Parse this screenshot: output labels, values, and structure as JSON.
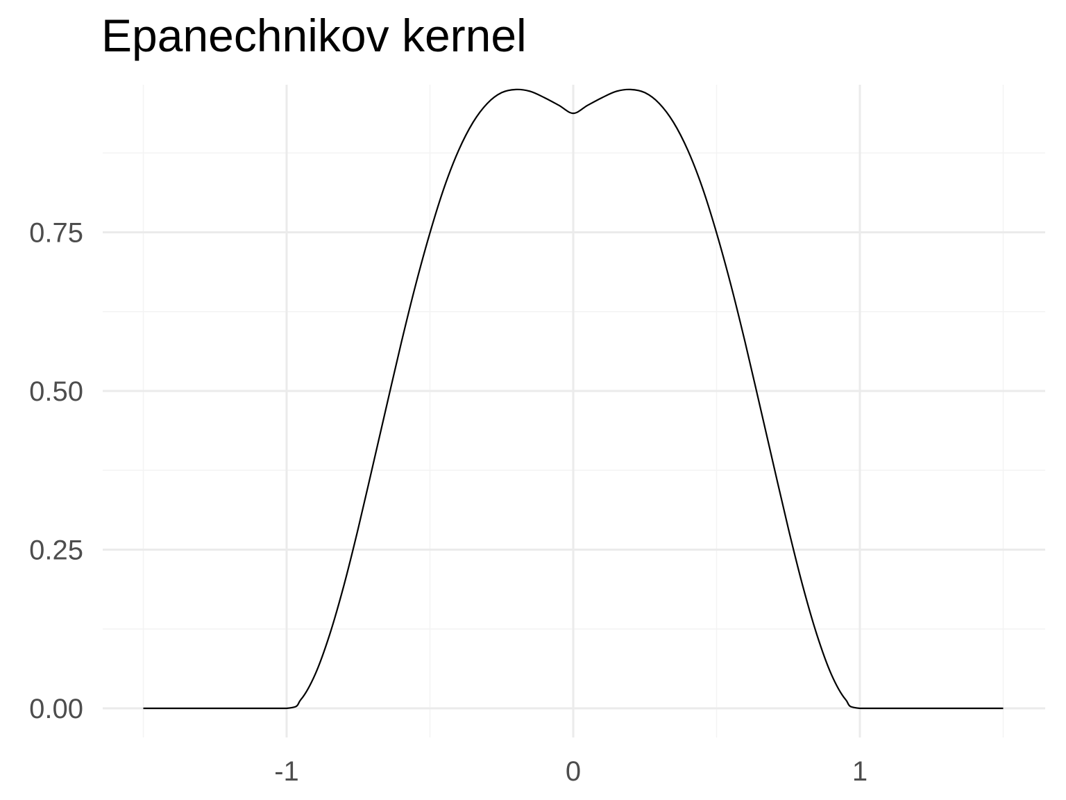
{
  "chart_data": {
    "type": "line",
    "title": "Epanechnikov kernel",
    "xlabel": "",
    "ylabel": "",
    "xlim": [
      -1.5,
      1.5
    ],
    "ylim": [
      0.0,
      0.9375
    ],
    "x_ticks": [
      -1,
      0,
      1
    ],
    "x_tick_labels": [
      "-1",
      "0",
      "1"
    ],
    "y_ticks": [
      0.0,
      0.25,
      0.5,
      0.75
    ],
    "y_tick_labels": [
      "0.00",
      "0.25",
      "0.50",
      "0.75"
    ],
    "grid": true,
    "legend": "none",
    "series": [
      {
        "x": [
          -1.5,
          -1.25,
          -1.0,
          -0.95,
          -0.9,
          -0.85,
          -0.8,
          -0.75,
          -0.7,
          -0.65,
          -0.6,
          -0.55,
          -0.5,
          -0.45,
          -0.4,
          -0.35,
          -0.3,
          -0.25,
          -0.2,
          -0.15,
          -0.1,
          -0.05,
          0.0,
          0.05,
          0.1,
          0.15,
          0.2,
          0.25,
          0.3,
          0.35,
          0.4,
          0.45,
          0.5,
          0.55,
          0.6,
          0.65,
          0.7,
          0.75,
          0.8,
          0.85,
          0.9,
          0.95,
          1.0,
          1.25,
          1.5
        ],
        "y": [
          0.0,
          0.0,
          0.0,
          0.014,
          0.054,
          0.116,
          0.194,
          0.284,
          0.381,
          0.479,
          0.576,
          0.667,
          0.749,
          0.821,
          0.879,
          0.923,
          0.953,
          0.97,
          0.975,
          0.972,
          0.962,
          0.95,
          0.9375,
          0.95,
          0.962,
          0.972,
          0.975,
          0.97,
          0.953,
          0.923,
          0.879,
          0.821,
          0.749,
          0.667,
          0.576,
          0.479,
          0.381,
          0.284,
          0.194,
          0.116,
          0.054,
          0.014,
          0.0,
          0.0,
          0.0
        ]
      }
    ],
    "colors": {
      "line": "#000000",
      "grid_major": "#ebebeb",
      "grid_minor": "#f3f3f3",
      "tick_text": "#4d4d4d",
      "background": "#ffffff"
    }
  }
}
